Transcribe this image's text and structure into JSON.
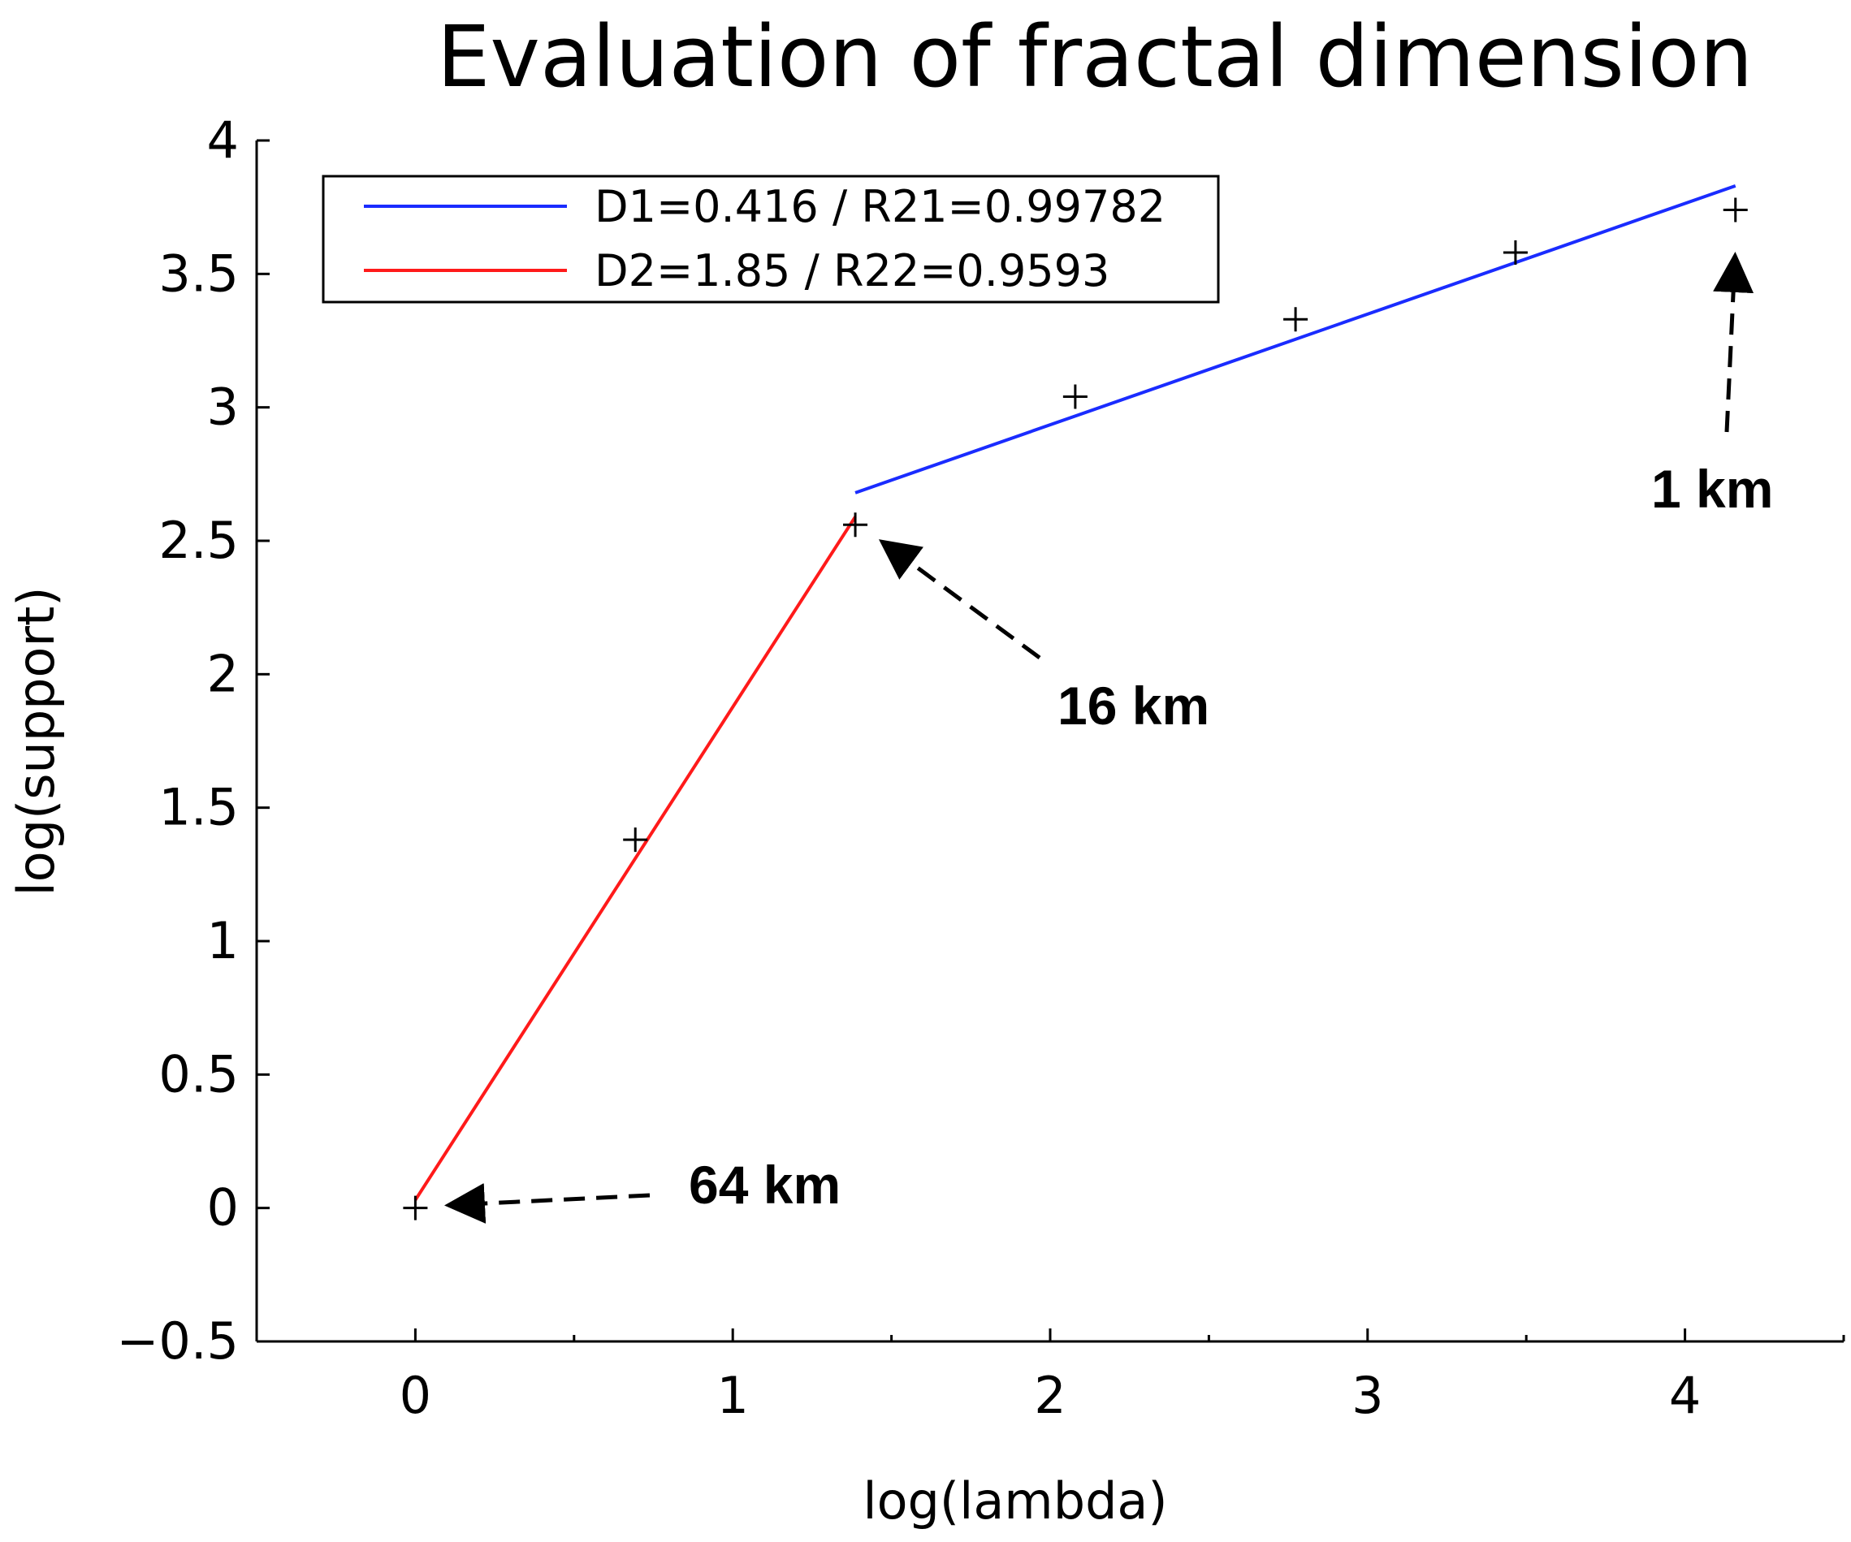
{
  "chart_data": {
    "type": "scatter",
    "title": "Evaluation of fractal dimension",
    "xlabel": "log(lambda)",
    "ylabel": "log(support)",
    "xlim": [
      -0.5,
      4.5
    ],
    "ylim": [
      -0.5,
      4
    ],
    "x_ticks": [
      "0",
      "1",
      "2",
      "3",
      "4"
    ],
    "x_ticks_values": [
      0,
      1,
      2,
      3,
      4
    ],
    "x_minor_ticks": [
      -0.5,
      0.5,
      1.5,
      2.5,
      3.5,
      4.5
    ],
    "y_ticks": [
      "−0.5",
      "0",
      "0.5",
      "1",
      "1.5",
      "2",
      "2.5",
      "3",
      "3.5",
      "4"
    ],
    "y_ticks_values": [
      -0.5,
      0,
      0.5,
      1,
      1.5,
      2,
      2.5,
      3,
      3.5,
      4
    ],
    "grid": false,
    "legend_position": "top-left",
    "points": {
      "marker": "plus",
      "x": [
        0,
        0.693,
        1.386,
        2.079,
        2.773,
        3.466,
        4.159
      ],
      "y": [
        0,
        1.38,
        2.56,
        3.04,
        3.33,
        3.58,
        3.74
      ]
    },
    "series": [
      {
        "name": "D1=0.416 / R21=0.99782",
        "color": "#1a2cff",
        "x": [
          1.386,
          4.159
        ],
        "y": [
          2.68,
          3.83
        ]
      },
      {
        "name": "D2=1.85 / R22=0.9593",
        "color": "#ff1a1a",
        "x": [
          0,
          1.386
        ],
        "y": [
          0.03,
          2.59
        ]
      }
    ],
    "annotations": [
      {
        "text": "64 km",
        "point": [
          0,
          0
        ]
      },
      {
        "text": "16 km",
        "point": [
          1.386,
          2.56
        ]
      },
      {
        "text": "1 km",
        "point": [
          4.159,
          3.74
        ]
      }
    ]
  }
}
